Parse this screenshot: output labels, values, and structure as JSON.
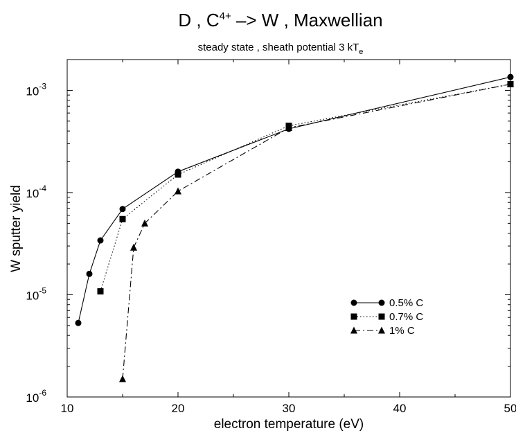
{
  "chart_data": {
    "type": "line",
    "title_main": "D , C",
    "title_sup": "4+",
    "title_rest": " –> W , Maxwellian",
    "subtitle_main": "steady state , sheath potential 3 kT",
    "subtitle_sub": "e",
    "xlabel": "electron temperature (eV)",
    "ylabel": "W sputter yield",
    "xlim": [
      10,
      50
    ],
    "ylim": [
      1e-06,
      0.002
    ],
    "yscale": "log",
    "grid": false,
    "legend_position": "lower-right",
    "xticks": [
      "10",
      "20",
      "30",
      "40",
      "50"
    ],
    "yticks": [
      {
        "base": "10",
        "exp": "-6"
      },
      {
        "base": "10",
        "exp": "-5"
      },
      {
        "base": "10",
        "exp": "-4"
      },
      {
        "base": "10",
        "exp": "-3"
      }
    ],
    "series": [
      {
        "name": "0.5% C",
        "marker": "circle",
        "dash": "solid",
        "x": [
          11,
          12,
          13,
          15,
          20,
          30,
          50
        ],
        "y": [
          5.3e-06,
          1.6e-05,
          3.4e-05,
          6.9e-05,
          0.00016,
          0.00042,
          0.00135
        ]
      },
      {
        "name": "0.7% C",
        "marker": "square",
        "dash": "dotted",
        "x": [
          13,
          15,
          20,
          30,
          50
        ],
        "y": [
          1.08e-05,
          5.5e-05,
          0.00015,
          0.00045,
          0.00115
        ]
      },
      {
        "name": "1% C",
        "marker": "triangle",
        "dash": "dashdot",
        "x": [
          15,
          16,
          17,
          20,
          30,
          50
        ],
        "y": [
          1.5e-06,
          2.9e-05,
          5e-05,
          0.000103,
          0.00043,
          0.00115
        ]
      }
    ]
  }
}
